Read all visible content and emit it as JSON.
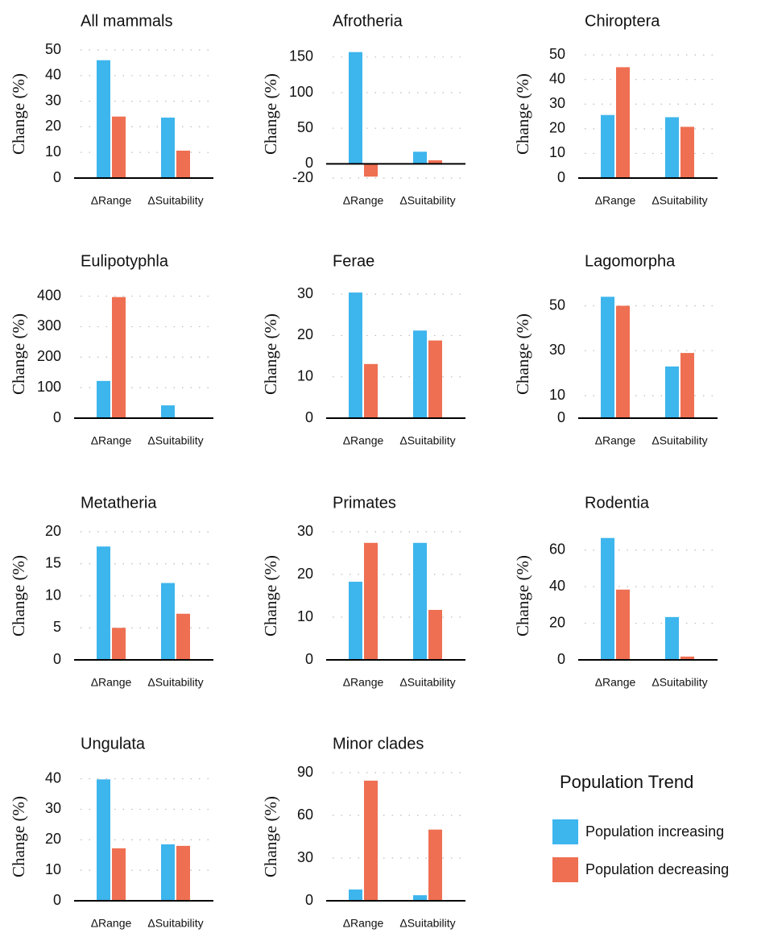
{
  "legend_title": "Population Trend",
  "chart_data": [
    {
      "type": "bar",
      "title": "All mammals",
      "ylabel": "Change (%)",
      "categories": [
        "ΔRange",
        "ΔSuitability"
      ],
      "series": [
        {
          "name": "Population increasing",
          "color": "#3db5ed",
          "values": [
            46,
            23.6
          ]
        },
        {
          "name": "Population decreasing",
          "color": "#ef6f52",
          "values": [
            24,
            10.7
          ]
        }
      ],
      "ylim": [
        0,
        50
      ],
      "yticks": [
        0,
        10,
        20,
        30,
        40,
        50
      ],
      "grid": true
    },
    {
      "type": "bar",
      "title": "Afrotheria",
      "ylabel": "Change (%)",
      "categories": [
        "ΔRange",
        "ΔSuitability"
      ],
      "series": [
        {
          "name": "Population increasing",
          "color": "#3db5ed",
          "values": [
            157,
            17
          ]
        },
        {
          "name": "Population decreasing",
          "color": "#ef6f52",
          "values": [
            -18,
            5
          ]
        }
      ],
      "ylim": [
        -20,
        160
      ],
      "yticks": [
        -20,
        0,
        50,
        100,
        150
      ],
      "grid": true
    },
    {
      "type": "bar",
      "title": "Chiroptera",
      "ylabel": "Change (%)",
      "categories": [
        "ΔRange",
        "ΔSuitability"
      ],
      "series": [
        {
          "name": "Population increasing",
          "color": "#3db5ed",
          "values": [
            25.6,
            24.7
          ]
        },
        {
          "name": "Population decreasing",
          "color": "#ef6f52",
          "values": [
            45,
            20.8
          ]
        }
      ],
      "ylim": [
        0,
        52
      ],
      "yticks": [
        0,
        10,
        20,
        30,
        40,
        50
      ],
      "grid": true
    },
    {
      "type": "bar",
      "title": "Eulipotyphla",
      "ylabel": "Change (%)",
      "categories": [
        "ΔRange",
        "ΔSuitability"
      ],
      "series": [
        {
          "name": "Population increasing",
          "color": "#3db5ed",
          "values": [
            122,
            42
          ]
        },
        {
          "name": "Population decreasing",
          "color": "#ef6f52",
          "values": [
            397,
            0
          ]
        }
      ],
      "ylim": [
        0,
        420
      ],
      "yticks": [
        0,
        100,
        200,
        300,
        400
      ],
      "grid": true
    },
    {
      "type": "bar",
      "title": "Ferae",
      "ylabel": "Change (%)",
      "categories": [
        "ΔRange",
        "ΔSuitability"
      ],
      "series": [
        {
          "name": "Population increasing",
          "color": "#3db5ed",
          "values": [
            30.4,
            21.2
          ]
        },
        {
          "name": "Population decreasing",
          "color": "#ef6f52",
          "values": [
            13.1,
            18.8
          ]
        }
      ],
      "ylim": [
        0,
        31
      ],
      "yticks": [
        0,
        10,
        20,
        30
      ],
      "grid": true
    },
    {
      "type": "bar",
      "title": "Lagomorpha",
      "ylabel": "Change (%)",
      "categories": [
        "ΔRange",
        "ΔSuitability"
      ],
      "series": [
        {
          "name": "Population increasing",
          "color": "#3db5ed",
          "values": [
            54,
            23
          ]
        },
        {
          "name": "Population decreasing",
          "color": "#ef6f52",
          "values": [
            50,
            29
          ]
        }
      ],
      "ylim": [
        0,
        57
      ],
      "yticks": [
        0,
        10,
        30,
        50
      ],
      "grid": true
    },
    {
      "type": "bar",
      "title": "Metatheria",
      "ylabel": "Change (%)",
      "categories": [
        "ΔRange",
        "ΔSuitability"
      ],
      "series": [
        {
          "name": "Population increasing",
          "color": "#3db5ed",
          "values": [
            17.7,
            12
          ]
        },
        {
          "name": "Population decreasing",
          "color": "#ef6f52",
          "values": [
            5,
            7.2
          ]
        }
      ],
      "ylim": [
        0,
        20
      ],
      "yticks": [
        0,
        5,
        10,
        15,
        20
      ],
      "grid": true
    },
    {
      "type": "bar",
      "title": "Primates",
      "ylabel": "Change (%)",
      "categories": [
        "ΔRange",
        "ΔSuitability"
      ],
      "series": [
        {
          "name": "Population increasing",
          "color": "#3db5ed",
          "values": [
            18.3,
            27.4
          ]
        },
        {
          "name": "Population decreasing",
          "color": "#ef6f52",
          "values": [
            27.4,
            11.7
          ]
        }
      ],
      "ylim": [
        0,
        30
      ],
      "yticks": [
        0,
        10,
        20,
        30
      ],
      "grid": true
    },
    {
      "type": "bar",
      "title": "Rodentia",
      "ylabel": "Change (%)",
      "categories": [
        "ΔRange",
        "ΔSuitability"
      ],
      "series": [
        {
          "name": "Population increasing",
          "color": "#3db5ed",
          "values": [
            66.6,
            23.4
          ]
        },
        {
          "name": "Population decreasing",
          "color": "#ef6f52",
          "values": [
            38.4,
            1.8
          ]
        }
      ],
      "ylim": [
        0,
        70
      ],
      "yticks": [
        0,
        20,
        40,
        60
      ],
      "grid": true
    },
    {
      "type": "bar",
      "title": "Ungulata",
      "ylabel": "Change (%)",
      "categories": [
        "ΔRange",
        "ΔSuitability"
      ],
      "series": [
        {
          "name": "Population increasing",
          "color": "#3db5ed",
          "values": [
            39.8,
            18.5
          ]
        },
        {
          "name": "Population decreasing",
          "color": "#ef6f52",
          "values": [
            17.2,
            18
          ]
        }
      ],
      "ylim": [
        0,
        42
      ],
      "yticks": [
        0,
        10,
        20,
        30,
        40
      ],
      "grid": true
    },
    {
      "type": "bar",
      "title": "Minor clades",
      "ylabel": "Change (%)",
      "categories": [
        "ΔRange",
        "ΔSuitability"
      ],
      "series": [
        {
          "name": "Population increasing",
          "color": "#3db5ed",
          "values": [
            7.9,
            3.9
          ]
        },
        {
          "name": "Population decreasing",
          "color": "#ef6f52",
          "values": [
            84.4,
            50
          ]
        }
      ],
      "ylim": [
        0,
        90
      ],
      "yticks": [
        0,
        30,
        60,
        90
      ],
      "grid": true
    }
  ]
}
